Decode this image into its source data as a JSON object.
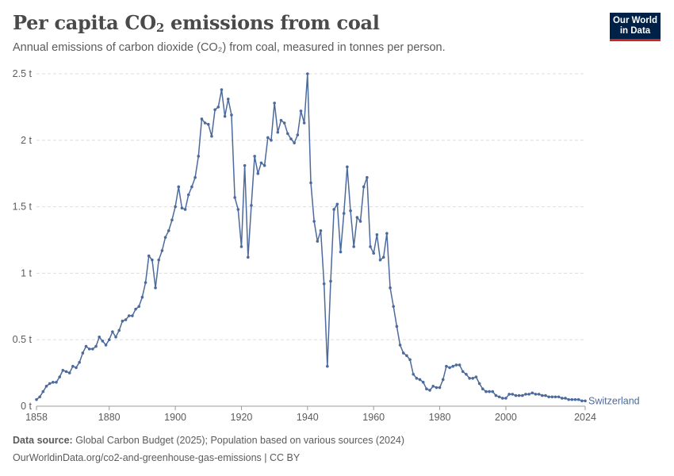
{
  "header": {
    "title_main": "Per capita CO",
    "title_sub": "2",
    "title_rest": " emissions from coal",
    "subtitle": "Annual emissions of carbon dioxide (CO₂) from coal, measured in tonnes per person."
  },
  "logo": {
    "line1": "Our World",
    "line2": "in Data"
  },
  "footer": {
    "source_label": "Data source:",
    "source_text": " Global Carbon Budget (2025); Population based on various sources (2024)",
    "url": "OurWorldinData.org/co2-and-greenhouse-gas-emissions | CC BY"
  },
  "colors": {
    "line": "#4c6a9c",
    "grid": "#dddddd",
    "axis": "#9a9a9a",
    "text": "#5b5b5b"
  },
  "chart_data": {
    "type": "line",
    "title": "Per capita CO₂ emissions from coal",
    "subtitle": "Annual emissions of carbon dioxide (CO₂) from coal, measured in tonnes per person.",
    "xlabel": "",
    "ylabel": "",
    "xlim": [
      1858,
      2024
    ],
    "ylim": [
      0,
      2.5
    ],
    "x_ticks": [
      1858,
      1880,
      1900,
      1920,
      1940,
      1960,
      1980,
      2000,
      2024
    ],
    "y_ticks": [
      {
        "value": 0,
        "label": "0 t"
      },
      {
        "value": 0.5,
        "label": "0.5 t"
      },
      {
        "value": 1,
        "label": "1 t"
      },
      {
        "value": 1.5,
        "label": "1.5 t"
      },
      {
        "value": 2,
        "label": "2 t"
      },
      {
        "value": 2.5,
        "label": "2.5 t"
      }
    ],
    "grid": "horizontal dashed",
    "series": [
      {
        "name": "Switzerland",
        "x": [
          1858,
          1859,
          1860,
          1861,
          1862,
          1863,
          1864,
          1865,
          1866,
          1867,
          1868,
          1869,
          1870,
          1871,
          1872,
          1873,
          1874,
          1875,
          1876,
          1877,
          1878,
          1879,
          1880,
          1881,
          1882,
          1883,
          1884,
          1885,
          1886,
          1887,
          1888,
          1889,
          1890,
          1891,
          1892,
          1893,
          1894,
          1895,
          1896,
          1897,
          1898,
          1899,
          1900,
          1901,
          1902,
          1903,
          1904,
          1905,
          1906,
          1907,
          1908,
          1909,
          1910,
          1911,
          1912,
          1913,
          1914,
          1915,
          1916,
          1917,
          1918,
          1919,
          1920,
          1921,
          1922,
          1923,
          1924,
          1925,
          1926,
          1927,
          1928,
          1929,
          1930,
          1931,
          1932,
          1933,
          1934,
          1935,
          1936,
          1937,
          1938,
          1939,
          1940,
          1941,
          1942,
          1943,
          1944,
          1945,
          1946,
          1947,
          1948,
          1949,
          1950,
          1951,
          1952,
          1953,
          1954,
          1955,
          1956,
          1957,
          1958,
          1959,
          1960,
          1961,
          1962,
          1963,
          1964,
          1965,
          1966,
          1967,
          1968,
          1969,
          1970,
          1971,
          1972,
          1973,
          1974,
          1975,
          1976,
          1977,
          1978,
          1979,
          1980,
          1981,
          1982,
          1983,
          1984,
          1985,
          1986,
          1987,
          1988,
          1989,
          1990,
          1991,
          1992,
          1993,
          1994,
          1995,
          1996,
          1997,
          1998,
          1999,
          2000,
          2001,
          2002,
          2003,
          2004,
          2005,
          2006,
          2007,
          2008,
          2009,
          2010,
          2011,
          2012,
          2013,
          2014,
          2015,
          2016,
          2017,
          2018,
          2019,
          2020,
          2021,
          2022,
          2023,
          2024
        ],
        "y": [
          0.05,
          0.07,
          0.11,
          0.15,
          0.17,
          0.18,
          0.18,
          0.22,
          0.27,
          0.26,
          0.25,
          0.3,
          0.29,
          0.33,
          0.4,
          0.45,
          0.43,
          0.43,
          0.45,
          0.52,
          0.49,
          0.46,
          0.5,
          0.56,
          0.52,
          0.57,
          0.64,
          0.65,
          0.68,
          0.68,
          0.73,
          0.75,
          0.82,
          0.93,
          1.13,
          1.1,
          0.89,
          1.1,
          1.17,
          1.27,
          1.32,
          1.4,
          1.5,
          1.65,
          1.49,
          1.48,
          1.59,
          1.65,
          1.72,
          1.88,
          2.16,
          2.13,
          2.12,
          2.03,
          2.23,
          2.25,
          2.38,
          2.18,
          2.31,
          2.19,
          1.57,
          1.48,
          1.2,
          1.81,
          1.12,
          1.51,
          1.88,
          1.75,
          1.83,
          1.81,
          2.02,
          2.0,
          2.28,
          2.06,
          2.15,
          2.13,
          2.05,
          2.01,
          1.98,
          2.04,
          2.22,
          2.13,
          2.5,
          1.68,
          1.39,
          1.24,
          1.32,
          0.92,
          0.3,
          0.94,
          1.48,
          1.52,
          1.16,
          1.45,
          1.8,
          1.47,
          1.2,
          1.42,
          1.39,
          1.65,
          1.72,
          1.2,
          1.15,
          1.29,
          1.1,
          1.12,
          1.3,
          0.89,
          0.75,
          0.6,
          0.46,
          0.4,
          0.38,
          0.35,
          0.24,
          0.21,
          0.2,
          0.18,
          0.13,
          0.12,
          0.15,
          0.14,
          0.14,
          0.2,
          0.3,
          0.29,
          0.3,
          0.31,
          0.31,
          0.26,
          0.24,
          0.21,
          0.21,
          0.22,
          0.17,
          0.13,
          0.11,
          0.11,
          0.11,
          0.08,
          0.07,
          0.06,
          0.06,
          0.09,
          0.09,
          0.08,
          0.08,
          0.08,
          0.09,
          0.09,
          0.1,
          0.09,
          0.09,
          0.08,
          0.08,
          0.07,
          0.07,
          0.07,
          0.07,
          0.06,
          0.06,
          0.05,
          0.05,
          0.05,
          0.05,
          0.04,
          0.04
        ]
      }
    ]
  }
}
